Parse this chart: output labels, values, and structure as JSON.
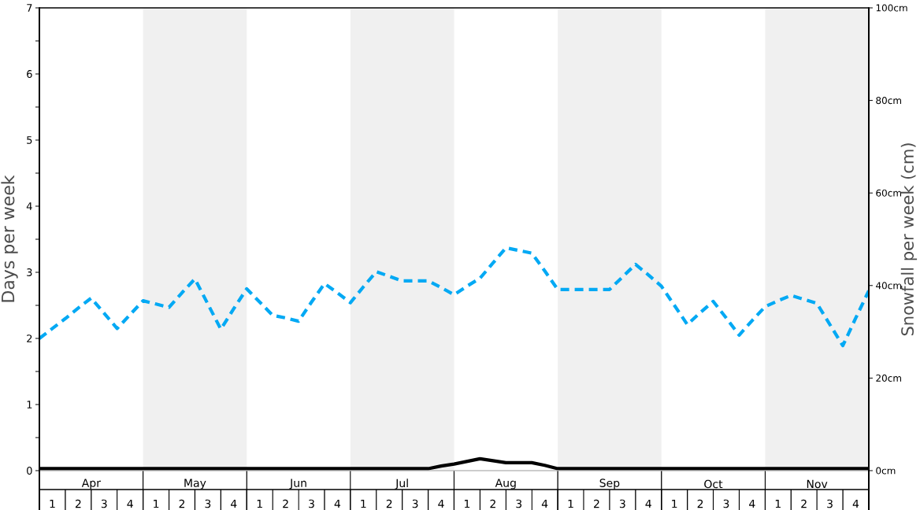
{
  "chart_data": {
    "type": "line",
    "ylabel": "Days per week",
    "y2label": "Snowfall per week (cm)",
    "categories": [
      null,
      "1",
      null,
      "2",
      "Apr",
      "3",
      null,
      "4",
      null,
      "1",
      null,
      "2",
      "May",
      "3",
      null,
      "4",
      null,
      "1",
      null,
      "2",
      "Jun",
      "3",
      null,
      "4",
      null,
      "1",
      null,
      "2",
      "Jul",
      "3",
      null,
      "4",
      null,
      "1",
      null,
      "2",
      "Aug",
      "3",
      null,
      "4",
      null,
      "1",
      null,
      "2",
      "Sep",
      "3",
      null,
      "4",
      null,
      "1",
      null,
      "2",
      "Oct",
      "3",
      null,
      "4",
      null,
      "1",
      null,
      "2",
      "Nov",
      "3",
      null,
      "4",
      null
    ],
    "ylim": [
      0,
      7
    ],
    "yticks": [
      0,
      {
        "value": 0.5,
        "label": null
      },
      1,
      {
        "value": 1.5,
        "label": null
      },
      2,
      {
        "value": 2.5,
        "label": null
      },
      3,
      {
        "value": 3.5,
        "label": null
      },
      4,
      {
        "value": 4.5,
        "label": null
      },
      5,
      {
        "value": 5.5,
        "label": null
      },
      6,
      {
        "value": 6.5,
        "label": null
      },
      7
    ],
    "y2lim": [
      0,
      100
    ],
    "y2ticks": [
      {
        "value": 0,
        "label": "0cm"
      },
      {
        "value": 20,
        "label": "20cm"
      },
      {
        "value": 40,
        "label": "40cm"
      },
      {
        "value": 60,
        "label": "60cm"
      },
      {
        "value": 80,
        "label": "80cm"
      },
      {
        "value": 100,
        "label": "100cm"
      }
    ],
    "series": [
      {
        "color": "#03a9f4",
        "line_style": "dashed",
        "values": [
          2.0,
          2.15,
          2.3,
          2.46,
          2.61,
          2.38,
          2.15,
          2.36,
          2.57,
          2.52,
          2.47,
          2.69,
          2.9,
          2.52,
          2.14,
          2.45,
          2.75,
          2.55,
          2.35,
          2.31,
          2.26,
          2.55,
          2.83,
          2.69,
          2.54,
          2.78,
          3.01,
          2.94,
          2.87,
          2.87,
          2.87,
          2.77,
          2.66,
          2.79,
          2.91,
          3.14,
          3.37,
          3.33,
          3.29,
          3.02,
          2.74,
          2.74,
          2.74,
          2.74,
          2.74,
          2.93,
          3.12,
          2.96,
          2.79,
          2.5,
          2.21,
          2.39,
          2.56,
          2.31,
          2.05,
          2.27,
          2.48,
          2.57,
          2.65,
          2.59,
          2.53,
          2.21,
          1.89,
          2.31,
          2.72
        ]
      },
      {
        "color": "#000000",
        "line_style": "solid",
        "values": [
          0.03,
          0.03,
          0.03,
          0.03,
          0.03,
          0.03,
          0.03,
          0.03,
          0.03,
          0.03,
          0.03,
          0.03,
          0.03,
          0.03,
          0.03,
          0.03,
          0.03,
          0.03,
          0.03,
          0.03,
          0.03,
          0.03,
          0.03,
          0.03,
          0.03,
          0.03,
          0.03,
          0.03,
          0.03,
          0.03,
          0.03,
          0.07,
          0.1,
          0.14,
          0.18,
          0.15,
          0.12,
          0.12,
          0.12,
          0.08,
          0.03,
          0.03,
          0.03,
          0.03,
          0.03,
          0.03,
          0.03,
          0.03,
          0.03,
          0.03,
          0.03,
          0.03,
          0.03,
          0.03,
          0.03,
          0.03,
          0.03,
          0.03,
          0.03,
          0.03,
          0.03,
          0.03,
          0.03,
          0.03,
          0.03
        ]
      }
    ],
    "marker": "none"
  }
}
